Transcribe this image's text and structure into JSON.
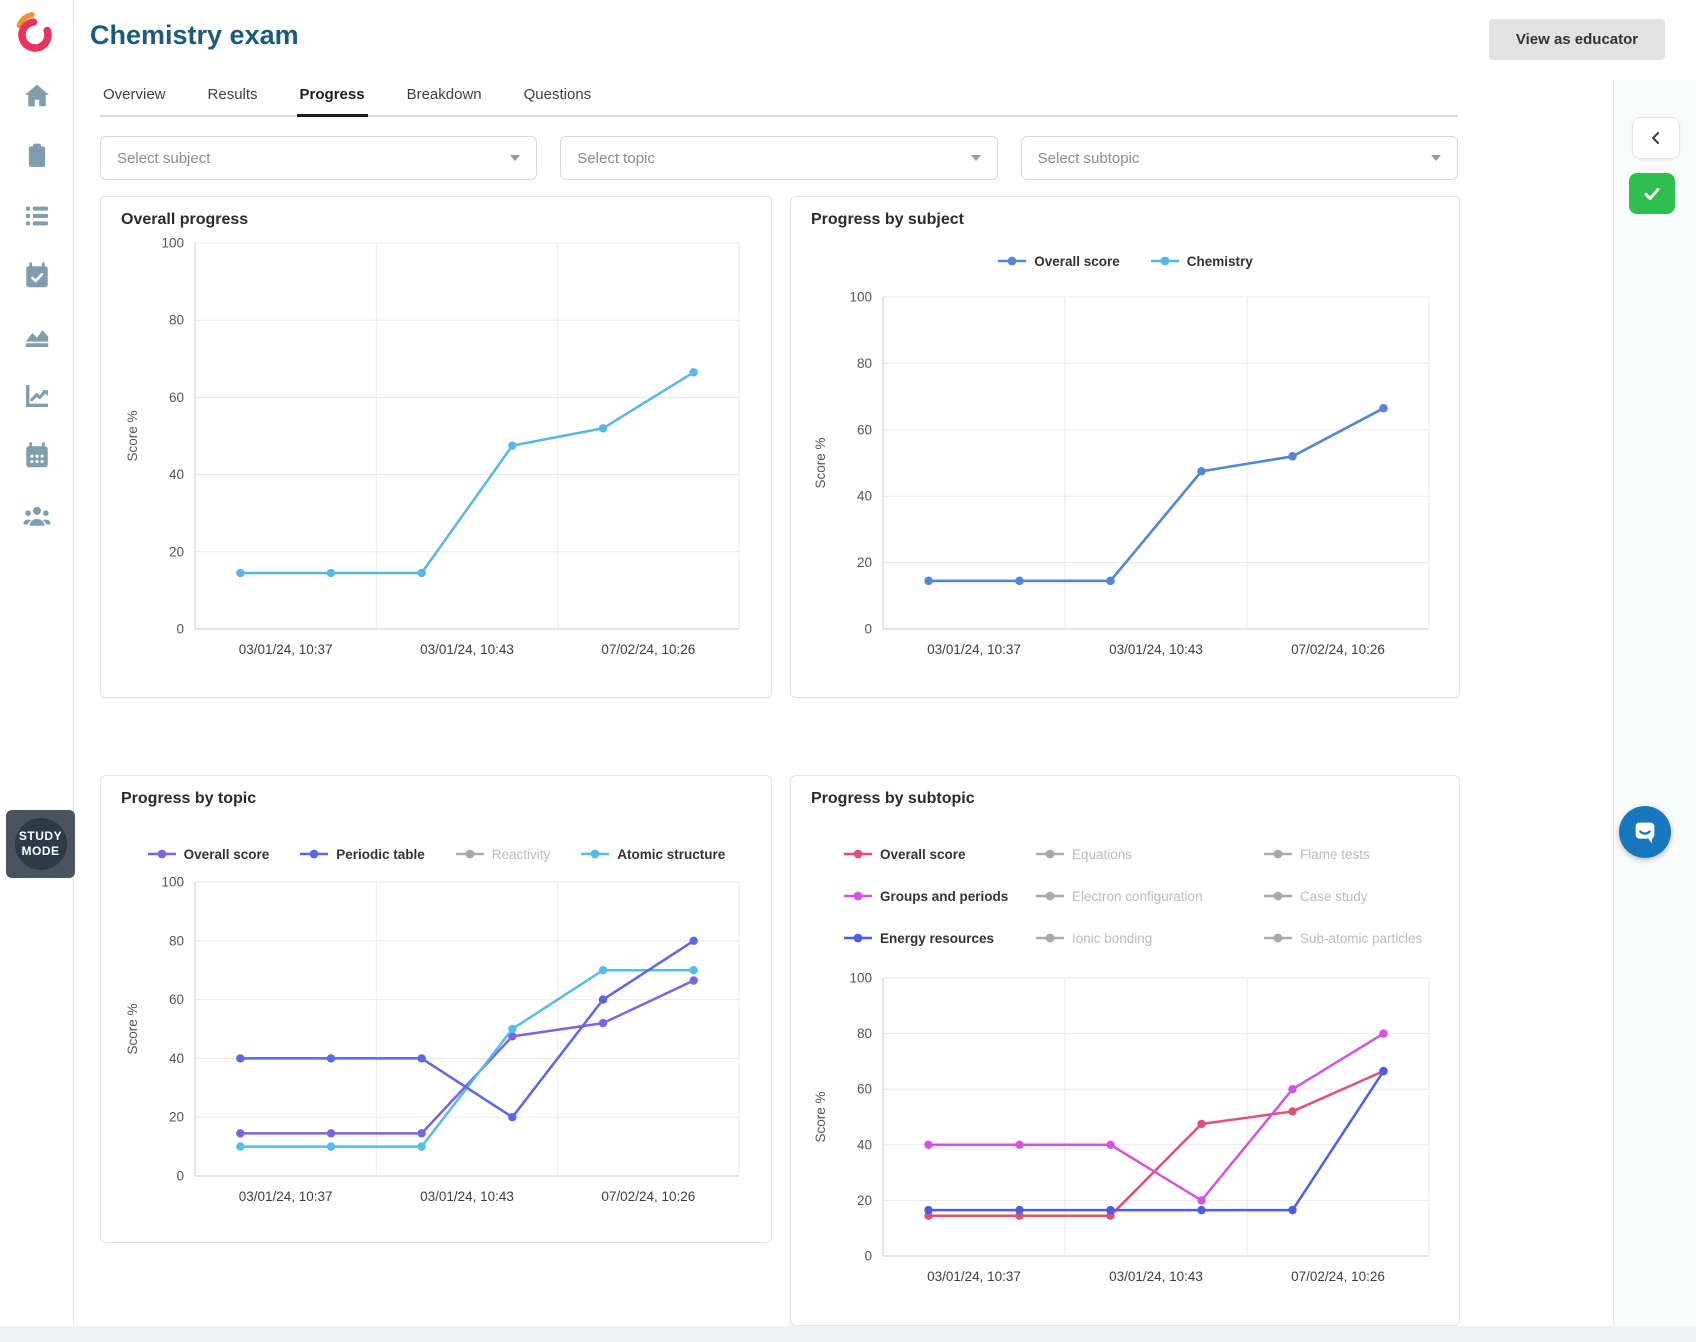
{
  "header": {
    "title": "Chemistry exam",
    "view_as_educator_label": "View as educator"
  },
  "tabs": [
    {
      "label": "Overview",
      "active": false
    },
    {
      "label": "Results",
      "active": false
    },
    {
      "label": "Progress",
      "active": true
    },
    {
      "label": "Breakdown",
      "active": false
    },
    {
      "label": "Questions",
      "active": false
    }
  ],
  "filters": [
    {
      "placeholder": "Select subject"
    },
    {
      "placeholder": "Select topic"
    },
    {
      "placeholder": "Select subtopic"
    }
  ],
  "sidebar": {
    "logo_icon": "seneca-swirl-logo",
    "items": [
      {
        "icon": "home-icon"
      },
      {
        "icon": "clipboard-icon"
      },
      {
        "icon": "list-icon"
      },
      {
        "icon": "calendar-check-icon"
      },
      {
        "icon": "area-chart-icon"
      },
      {
        "icon": "trend-chart-icon"
      },
      {
        "icon": "calendar-icon"
      },
      {
        "icon": "users-icon"
      }
    ]
  },
  "study_mode_badge": {
    "line1": "STUDY",
    "line2": "MODE"
  },
  "side_controls": {
    "collapse_icon": "chevron-left-icon",
    "confirm_icon": "check-icon"
  },
  "chat_button": {
    "icon": "chat-bubble-icon"
  },
  "colors": {
    "title_teal": "#1a5b7a",
    "sidebar_icon": "#7f9dad",
    "confirm_green": "#2fbe50",
    "chat_blue": "#1877bd",
    "logo_red": "#e8335c",
    "logo_orange": "#f29232",
    "inactive_legend": "#a9a9a9"
  },
  "chart_data": [
    {
      "id": "overall-progress",
      "type": "line",
      "title": "Overall progress",
      "ylabel": "Score %",
      "ylim": [
        0,
        100
      ],
      "yticks": [
        0,
        20,
        40,
        60,
        80,
        100
      ],
      "x_tick_labels": [
        "03/01/24, 10:37",
        "03/01/24, 10:43",
        "07/02/24, 10:26"
      ],
      "grid": true,
      "legend_rows": [],
      "series": [
        {
          "name": "Overall score",
          "color": "#57b7e8",
          "values": [
            14.5,
            14.5,
            14.5,
            47.5,
            52,
            66.5
          ]
        }
      ]
    },
    {
      "id": "progress-by-subject",
      "type": "line",
      "title": "Progress by subject",
      "ylabel": "Score %",
      "ylim": [
        0,
        100
      ],
      "yticks": [
        0,
        20,
        40,
        60,
        80,
        100
      ],
      "x_tick_labels": [
        "03/01/24, 10:37",
        "03/01/24, 10:43",
        "07/02/24, 10:26"
      ],
      "grid": true,
      "legend_rows": [
        [
          {
            "label": "Overall score",
            "color": "#5585d8",
            "active": true
          },
          {
            "label": "Chemistry",
            "color": "#57b7e8",
            "active": true
          }
        ]
      ],
      "series": [
        {
          "name": "Chemistry",
          "color": "#57b7e8",
          "values": [
            14.5,
            14.5,
            14.5,
            47.5,
            52,
            66.5
          ]
        },
        {
          "name": "Overall score",
          "color": "#5585d8",
          "values": [
            14.5,
            14.5,
            14.5,
            47.5,
            52,
            66.5
          ]
        }
      ]
    },
    {
      "id": "progress-by-topic",
      "type": "line",
      "title": "Progress by topic",
      "ylabel": "Score %",
      "ylim": [
        0,
        100
      ],
      "yticks": [
        0,
        20,
        40,
        60,
        80,
        100
      ],
      "x_tick_labels": [
        "03/01/24, 10:37",
        "03/01/24, 10:43",
        "07/02/24, 10:26"
      ],
      "grid": true,
      "legend_rows": [
        [
          {
            "label": "Overall score",
            "color": "#7d62e2",
            "active": true
          },
          {
            "label": "Periodic table",
            "color": "#5b66e8",
            "active": true
          },
          {
            "label": "Reactivity",
            "color": "#a9a9a9",
            "active": false
          },
          {
            "label": "Atomic structure",
            "color": "#53bde8",
            "active": true
          }
        ]
      ],
      "series": [
        {
          "name": "Overall score",
          "color": "#7d62e2",
          "values": [
            14.5,
            14.5,
            14.5,
            47.5,
            52,
            66.5
          ]
        },
        {
          "name": "Atomic structure",
          "color": "#53bde8",
          "values": [
            10,
            10,
            10,
            50,
            70,
            70
          ]
        },
        {
          "name": "Periodic table",
          "color": "#5b66e8",
          "values": [
            40,
            40,
            40,
            20,
            60,
            80
          ]
        }
      ]
    },
    {
      "id": "progress-by-subtopic",
      "type": "line",
      "title": "Progress by subtopic",
      "ylabel": "Score %",
      "ylim": [
        0,
        100
      ],
      "yticks": [
        0,
        20,
        40,
        60,
        80,
        100
      ],
      "x_tick_labels": [
        "03/01/24, 10:37",
        "03/01/24, 10:43",
        "07/02/24, 10:26"
      ],
      "grid": true,
      "legend_rows": [
        [
          {
            "label": "Overall score",
            "color": "#e25072",
            "active": true
          },
          {
            "label": "Equations",
            "color": "#a9a9a9",
            "active": false
          },
          {
            "label": "Flame tests",
            "color": "#a9a9a9",
            "active": false
          }
        ],
        [
          {
            "label": "Groups and periods",
            "color": "#d553e0",
            "active": true
          },
          {
            "label": "Electron configuration",
            "color": "#a9a9a9",
            "active": false
          },
          {
            "label": "Case study",
            "color": "#a9a9a9",
            "active": false
          }
        ],
        [
          {
            "label": "Energy resources",
            "color": "#4f5ce6",
            "active": true
          },
          {
            "label": "Ionic bonding",
            "color": "#a9a9a9",
            "active": false
          },
          {
            "label": "Sub-atomic particles",
            "color": "#a9a9a9",
            "active": false
          }
        ]
      ],
      "series": [
        {
          "name": "Overall score",
          "color": "#e25072",
          "values": [
            14.5,
            14.5,
            14.5,
            47.5,
            52,
            66.5
          ]
        },
        {
          "name": "Groups and periods",
          "color": "#d553e0",
          "values": [
            40,
            40,
            40,
            20,
            60,
            80
          ]
        },
        {
          "name": "Energy resources",
          "color": "#4f5ce6",
          "values": [
            16.5,
            16.5,
            16.5,
            16.5,
            16.5,
            66.5
          ]
        }
      ]
    }
  ]
}
